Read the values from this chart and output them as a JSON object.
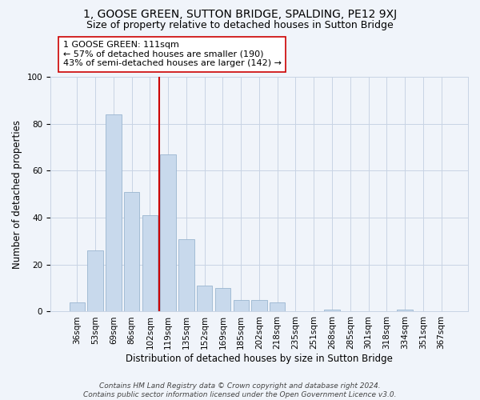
{
  "title": "1, GOOSE GREEN, SUTTON BRIDGE, SPALDING, PE12 9XJ",
  "subtitle": "Size of property relative to detached houses in Sutton Bridge",
  "xlabel": "Distribution of detached houses by size in Sutton Bridge",
  "ylabel": "Number of detached properties",
  "bar_labels": [
    "36sqm",
    "53sqm",
    "69sqm",
    "86sqm",
    "102sqm",
    "119sqm",
    "135sqm",
    "152sqm",
    "169sqm",
    "185sqm",
    "202sqm",
    "218sqm",
    "235sqm",
    "251sqm",
    "268sqm",
    "285sqm",
    "301sqm",
    "318sqm",
    "334sqm",
    "351sqm",
    "367sqm"
  ],
  "bar_values": [
    4,
    26,
    84,
    51,
    41,
    67,
    31,
    11,
    10,
    5,
    5,
    4,
    0,
    0,
    1,
    0,
    0,
    0,
    1,
    0,
    0
  ],
  "bar_color": "#c8d9ec",
  "bar_edge_color": "#9ab5d0",
  "vline_x": 4.5,
  "vline_color": "#cc0000",
  "annotation_text": "1 GOOSE GREEN: 111sqm\n← 57% of detached houses are smaller (190)\n43% of semi-detached houses are larger (142) →",
  "ylim": [
    0,
    100
  ],
  "yticks": [
    0,
    20,
    40,
    60,
    80,
    100
  ],
  "background_color": "#f0f4fa",
  "grid_color": "#c8d4e4",
  "footer": "Contains HM Land Registry data © Crown copyright and database right 2024.\nContains public sector information licensed under the Open Government Licence v3.0.",
  "title_fontsize": 10,
  "subtitle_fontsize": 9,
  "xlabel_fontsize": 8.5,
  "ylabel_fontsize": 8.5,
  "tick_fontsize": 7.5,
  "annotation_fontsize": 8,
  "footer_fontsize": 6.5
}
